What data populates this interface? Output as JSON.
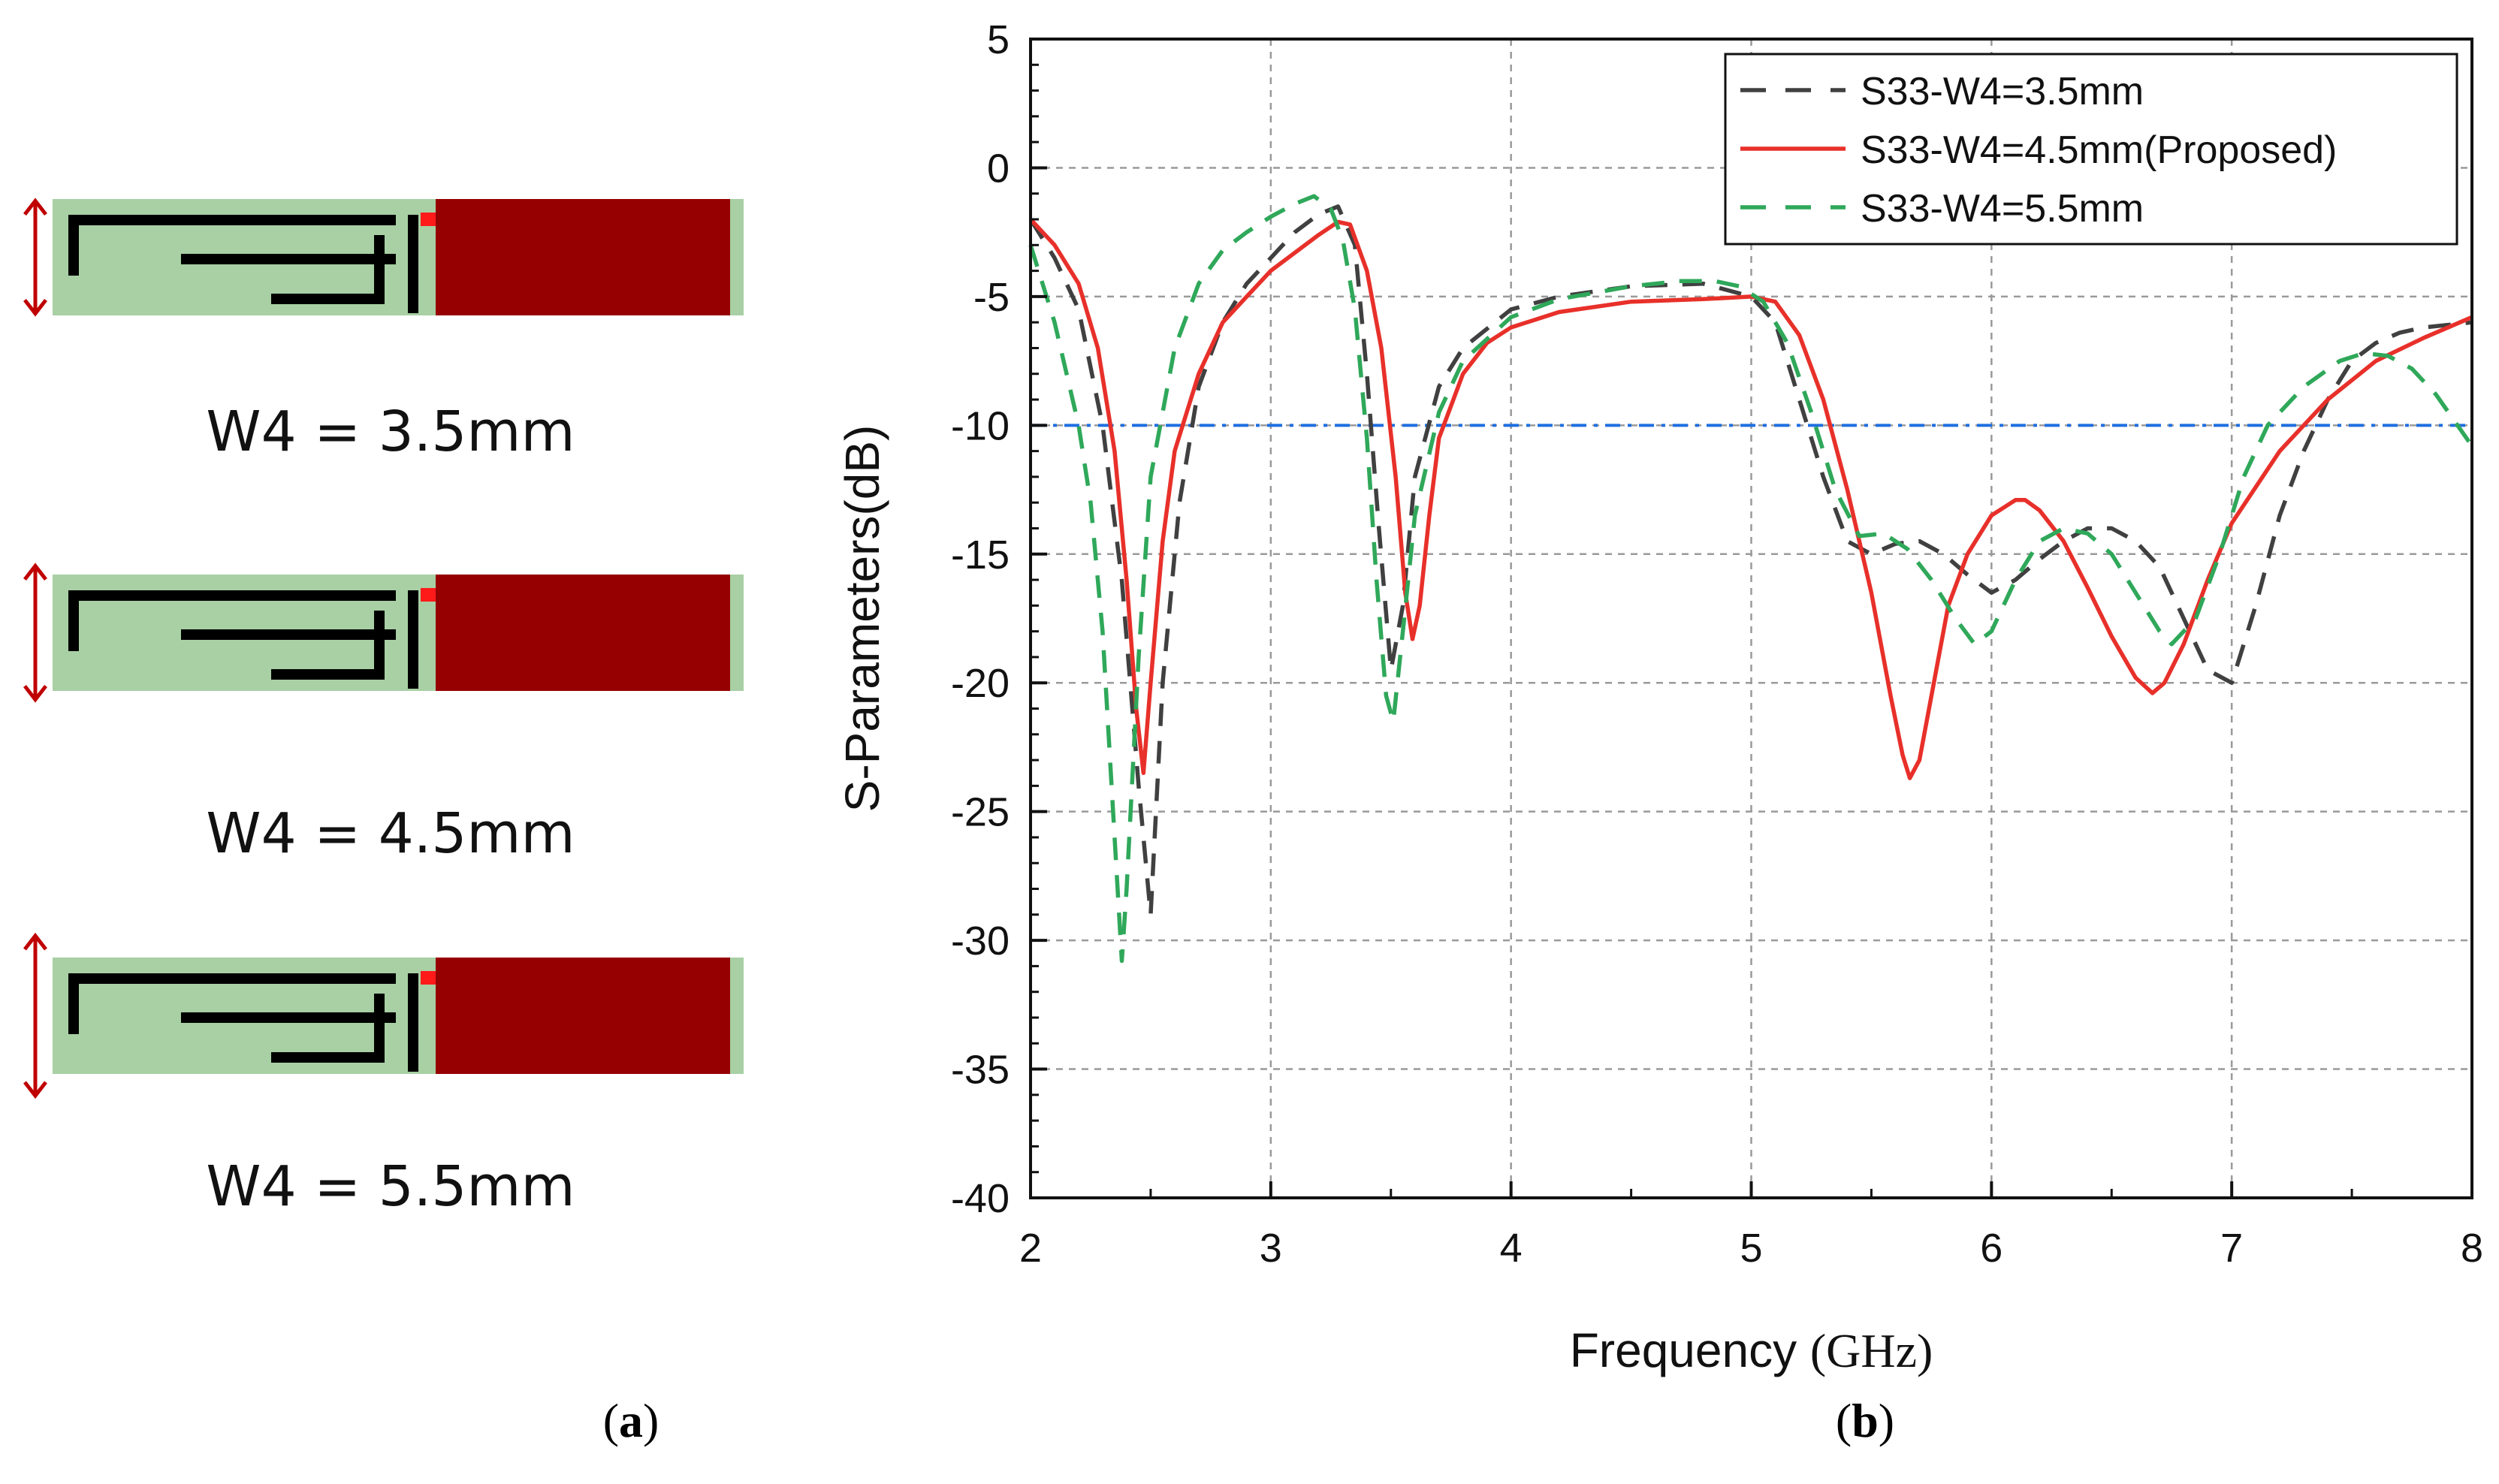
{
  "panel_a": {
    "designs": [
      {
        "label": "W4 = 3.5mm",
        "arrow_scale": 0.5
      },
      {
        "label": "W4 = 4.5mm",
        "arrow_scale": 0.7
      },
      {
        "label": "W4 = 5.5mm",
        "arrow_scale": 0.95
      }
    ],
    "caption": {
      "open": "(",
      "letter": "a",
      "close": ")"
    },
    "colors": {
      "substrate": "#a8d0a4",
      "patch": "#960000",
      "line": "#000000",
      "arrow": "#c00000",
      "feed": "#ff1a1a"
    }
  },
  "panel_b": {
    "caption": {
      "open": "(",
      "letter": "b",
      "close": ")"
    },
    "xlabel_prefix": "Frequency ",
    "xlabel_unit": "(GHz)",
    "ylabel": "S-Parameters(dB)"
  },
  "chart_data": {
    "type": "line",
    "xlim": [
      2,
      8
    ],
    "ylim": [
      -40,
      5
    ],
    "xticks": [
      "2",
      "3",
      "4",
      "5",
      "6",
      "7",
      "8"
    ],
    "yticks": [
      "5",
      "0",
      "-5",
      "-10",
      "-15",
      "-20",
      "-25",
      "-30",
      "-35",
      "-40"
    ],
    "grid": true,
    "legend_position": "top-right",
    "reference_line": {
      "y": -10,
      "color": "#1f6fe0"
    },
    "series": [
      {
        "name": "S33-W4=3.5mm",
        "color": "#404040",
        "dash": "dash",
        "x": [
          2.0,
          2.1,
          2.2,
          2.3,
          2.38,
          2.45,
          2.5,
          2.55,
          2.62,
          2.7,
          2.8,
          2.9,
          3.0,
          3.1,
          3.2,
          3.28,
          3.35,
          3.4,
          3.45,
          3.5,
          3.55,
          3.6,
          3.7,
          3.8,
          4.0,
          4.2,
          4.5,
          4.8,
          5.0,
          5.1,
          5.2,
          5.3,
          5.4,
          5.5,
          5.6,
          5.7,
          5.8,
          5.9,
          6.0,
          6.1,
          6.2,
          6.3,
          6.4,
          6.5,
          6.6,
          6.7,
          6.8,
          6.9,
          7.0,
          7.1,
          7.2,
          7.3,
          7.4,
          7.5,
          7.6,
          7.7,
          7.8,
          8.0
        ],
        "y": [
          -2.0,
          -3.5,
          -5.5,
          -10.0,
          -16.0,
          -24.0,
          -29.0,
          -20.0,
          -13.0,
          -8.5,
          -6.0,
          -4.5,
          -3.5,
          -2.5,
          -1.8,
          -1.5,
          -3.0,
          -8.0,
          -14.0,
          -19.5,
          -17.0,
          -12.0,
          -8.5,
          -7.0,
          -5.5,
          -5.0,
          -4.6,
          -4.5,
          -5.0,
          -6.0,
          -9.0,
          -12.0,
          -14.5,
          -15.0,
          -14.6,
          -14.5,
          -15.0,
          -15.8,
          -16.5,
          -16.0,
          -15.2,
          -14.5,
          -14.0,
          -14.0,
          -14.5,
          -15.5,
          -17.5,
          -19.5,
          -20.0,
          -17.0,
          -13.5,
          -11.0,
          -9.0,
          -7.5,
          -6.8,
          -6.4,
          -6.2,
          -6.0
        ]
      },
      {
        "name": "S33-W4=4.5mm(Proposed)",
        "color": "#e8302a",
        "dash": "solid",
        "x": [
          2.0,
          2.1,
          2.2,
          2.28,
          2.35,
          2.4,
          2.44,
          2.47,
          2.5,
          2.55,
          2.6,
          2.7,
          2.8,
          2.9,
          3.0,
          3.1,
          3.2,
          3.28,
          3.33,
          3.4,
          3.46,
          3.52,
          3.56,
          3.59,
          3.62,
          3.66,
          3.7,
          3.8,
          3.9,
          4.0,
          4.2,
          4.5,
          4.8,
          5.0,
          5.1,
          5.2,
          5.3,
          5.4,
          5.5,
          5.58,
          5.63,
          5.66,
          5.7,
          5.76,
          5.82,
          5.9,
          6.0,
          6.1,
          6.14,
          6.2,
          6.3,
          6.4,
          6.5,
          6.6,
          6.67,
          6.72,
          6.8,
          6.9,
          7.0,
          7.2,
          7.4,
          7.6,
          7.8,
          8.0
        ],
        "y": [
          -2.0,
          -3.0,
          -4.5,
          -7.0,
          -11.0,
          -16.0,
          -21.0,
          -23.5,
          -20.0,
          -14.5,
          -11.0,
          -8.0,
          -6.0,
          -5.0,
          -4.0,
          -3.3,
          -2.6,
          -2.1,
          -2.2,
          -4.0,
          -7.0,
          -12.0,
          -16.5,
          -18.3,
          -17.0,
          -13.5,
          -10.5,
          -8.0,
          -6.8,
          -6.2,
          -5.6,
          -5.2,
          -5.1,
          -5.0,
          -5.2,
          -6.5,
          -9.0,
          -12.5,
          -16.5,
          -20.5,
          -22.8,
          -23.7,
          -23.0,
          -20.0,
          -17.0,
          -15.0,
          -13.5,
          -12.9,
          -12.9,
          -13.3,
          -14.5,
          -16.3,
          -18.2,
          -19.8,
          -20.4,
          -20.0,
          -18.5,
          -16.0,
          -13.8,
          -11.0,
          -9.0,
          -7.5,
          -6.6,
          -5.8
        ]
      },
      {
        "name": "S33-W4=5.5mm",
        "color": "#2fa85a",
        "dash": "dash",
        "x": [
          2.0,
          2.1,
          2.2,
          2.25,
          2.3,
          2.35,
          2.38,
          2.4,
          2.45,
          2.5,
          2.6,
          2.7,
          2.8,
          2.9,
          3.0,
          3.1,
          3.18,
          3.25,
          3.3,
          3.35,
          3.4,
          3.44,
          3.48,
          3.51,
          3.55,
          3.6,
          3.7,
          3.8,
          4.0,
          4.2,
          4.5,
          4.7,
          4.85,
          4.95,
          5.05,
          5.15,
          5.25,
          5.35,
          5.45,
          5.55,
          5.65,
          5.75,
          5.85,
          5.93,
          6.0,
          6.1,
          6.2,
          6.3,
          6.4,
          6.5,
          6.6,
          6.7,
          6.75,
          6.85,
          6.95,
          7.05,
          7.15,
          7.3,
          7.45,
          7.55,
          7.65,
          7.75,
          7.85,
          8.0
        ],
        "y": [
          -3.0,
          -6.0,
          -10.0,
          -13.0,
          -18.0,
          -26.0,
          -30.8,
          -28.0,
          -19.0,
          -12.0,
          -7.0,
          -4.5,
          -3.2,
          -2.5,
          -1.9,
          -1.4,
          -1.1,
          -1.6,
          -2.8,
          -5.5,
          -10.5,
          -16.0,
          -20.5,
          -21.5,
          -18.0,
          -13.5,
          -9.5,
          -7.5,
          -5.8,
          -5.1,
          -4.6,
          -4.4,
          -4.4,
          -4.6,
          -5.2,
          -6.8,
          -9.5,
          -12.5,
          -14.3,
          -14.2,
          -14.8,
          -16.0,
          -17.5,
          -18.5,
          -18.0,
          -16.0,
          -14.5,
          -14.0,
          -14.2,
          -15.0,
          -16.5,
          -18.0,
          -18.5,
          -17.5,
          -15.0,
          -12.0,
          -10.0,
          -8.5,
          -7.5,
          -7.2,
          -7.3,
          -7.8,
          -8.8,
          -10.8
        ]
      }
    ]
  }
}
